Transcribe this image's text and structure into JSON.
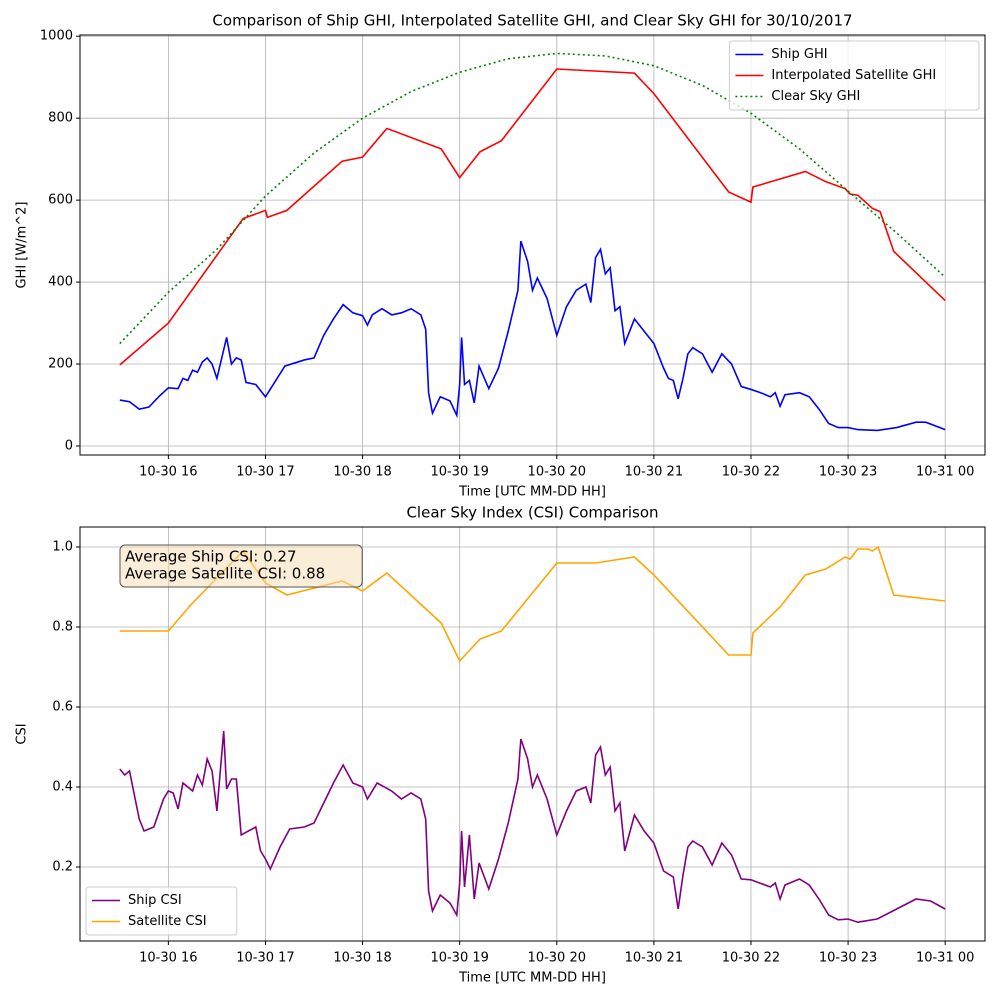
{
  "chart_data": [
    {
      "type": "line",
      "title": "Comparison of Ship GHI, Interpolated Satellite GHI, and Clear Sky GHI for 30/10/2017",
      "x_label": "Time [UTC MM-DD HH]",
      "y_label": "GHI [W/m^2]",
      "xlim": [
        15.09,
        24.41
      ],
      "ylim": [
        -22,
        1003
      ],
      "xticks": [
        {
          "value": 16,
          "label": "10-30 16"
        },
        {
          "value": 17,
          "label": "10-30 17"
        },
        {
          "value": 18,
          "label": "10-30 18"
        },
        {
          "value": 19,
          "label": "10-30 19"
        },
        {
          "value": 20,
          "label": "10-30 20"
        },
        {
          "value": 21,
          "label": "10-30 21"
        },
        {
          "value": 22,
          "label": "10-30 22"
        },
        {
          "value": 23,
          "label": "10-30 23"
        },
        {
          "value": 24,
          "label": "10-31 00"
        }
      ],
      "yticks": [
        0,
        200,
        400,
        600,
        800,
        1000
      ],
      "grid": true,
      "legend": "upper right",
      "series": [
        {
          "name": "Ship GHI",
          "color": "#0000ff",
          "linestyle": "solid",
          "x": [
            15.5,
            15.6,
            15.7,
            15.8,
            15.9,
            16.0,
            16.1,
            16.15,
            16.2,
            16.25,
            16.3,
            16.35,
            16.4,
            16.45,
            16.5,
            16.6,
            16.65,
            16.7,
            16.75,
            16.8,
            16.9,
            17.0,
            17.2,
            17.4,
            17.5,
            17.6,
            17.7,
            17.8,
            17.9,
            18.0,
            18.05,
            18.1,
            18.2,
            18.3,
            18.4,
            18.5,
            18.6,
            18.65,
            18.68,
            18.72,
            18.8,
            18.9,
            18.97,
            19.0,
            19.02,
            19.05,
            19.1,
            19.15,
            19.2,
            19.3,
            19.4,
            19.5,
            19.6,
            19.63,
            19.7,
            19.75,
            19.8,
            19.9,
            20.0,
            20.1,
            20.2,
            20.3,
            20.35,
            20.4,
            20.45,
            20.5,
            20.55,
            20.6,
            20.65,
            20.7,
            20.8,
            20.9,
            21.0,
            21.1,
            21.15,
            21.2,
            21.25,
            21.3,
            21.35,
            21.4,
            21.5,
            21.6,
            21.7,
            21.8,
            21.9,
            22.0,
            22.1,
            22.2,
            22.25,
            22.3,
            22.35,
            22.5,
            22.6,
            22.7,
            22.8,
            22.9,
            23.0,
            23.1,
            23.3,
            23.5,
            23.7,
            23.8,
            24.0
          ],
          "values": [
            112,
            108,
            90,
            95,
            120,
            142,
            140,
            165,
            160,
            185,
            180,
            205,
            215,
            200,
            165,
            265,
            200,
            215,
            210,
            155,
            150,
            120,
            195,
            210,
            215,
            270,
            310,
            345,
            325,
            318,
            295,
            320,
            335,
            320,
            325,
            335,
            320,
            285,
            130,
            80,
            120,
            110,
            75,
            150,
            265,
            150,
            160,
            105,
            195,
            140,
            190,
            280,
            380,
            500,
            450,
            380,
            410,
            360,
            270,
            340,
            380,
            395,
            350,
            460,
            480,
            420,
            435,
            330,
            340,
            250,
            310,
            280,
            250,
            190,
            165,
            160,
            115,
            165,
            225,
            240,
            225,
            180,
            225,
            200,
            145,
            138,
            130,
            120,
            130,
            97,
            125,
            130,
            120,
            90,
            55,
            45,
            45,
            40,
            38,
            45,
            58,
            58,
            40
          ]
        },
        {
          "name": "Interpolated Satellite GHI",
          "color": "#ff0000",
          "linestyle": "solid",
          "x": [
            15.5,
            16.0,
            16.77,
            17.0,
            17.02,
            17.22,
            17.79,
            18.0,
            18.25,
            18.81,
            19.0,
            19.21,
            19.43,
            20.0,
            20.8,
            21.0,
            21.77,
            22.0,
            22.02,
            22.56,
            22.77,
            22.97,
            23.02,
            23.1,
            23.25,
            23.33,
            23.47,
            24.0
          ],
          "values": [
            198,
            300,
            555,
            575,
            558,
            575,
            695,
            705,
            775,
            725,
            655,
            718,
            745,
            920,
            910,
            860,
            620,
            595,
            632,
            670,
            645,
            628,
            615,
            612,
            580,
            572,
            475,
            355
          ]
        },
        {
          "name": "Clear Sky GHI",
          "color": "#008000",
          "linestyle": "dotted",
          "x": [
            15.5,
            16.0,
            16.5,
            17.0,
            17.5,
            18.0,
            18.5,
            19.0,
            19.5,
            20.0,
            20.5,
            21.0,
            21.5,
            22.0,
            22.5,
            23.0,
            23.5,
            24.0
          ],
          "values": [
            250,
            375,
            480,
            610,
            715,
            800,
            865,
            912,
            945,
            958,
            952,
            928,
            880,
            812,
            725,
            622,
            520,
            412
          ]
        }
      ]
    },
    {
      "type": "line",
      "title": "Clear Sky Index (CSI) Comparison",
      "x_label": "Time [UTC MM-DD HH]",
      "y_label": "CSI",
      "xlim": [
        15.09,
        24.41
      ],
      "ylim": [
        0.015,
        1.05
      ],
      "xticks": [
        {
          "value": 16,
          "label": "10-30 16"
        },
        {
          "value": 17,
          "label": "10-30 17"
        },
        {
          "value": 18,
          "label": "10-30 18"
        },
        {
          "value": 19,
          "label": "10-30 19"
        },
        {
          "value": 20,
          "label": "10-30 20"
        },
        {
          "value": 21,
          "label": "10-30 21"
        },
        {
          "value": 22,
          "label": "10-30 22"
        },
        {
          "value": 23,
          "label": "10-30 23"
        },
        {
          "value": 24,
          "label": "10-31 00"
        }
      ],
      "yticks": [
        0.2,
        0.4,
        0.6,
        0.8,
        {
          "value": 1,
          "label": "1.0"
        }
      ],
      "grid": true,
      "legend": "lower left",
      "annotations": [
        "Average Ship CSI: 0.27",
        "Average Satellite CSI: 0.88"
      ],
      "series": [
        {
          "name": "Ship CSI",
          "color": "#800080",
          "linestyle": "solid",
          "x": [
            15.5,
            15.55,
            15.6,
            15.7,
            15.75,
            15.85,
            15.95,
            16.0,
            16.05,
            16.1,
            16.15,
            16.25,
            16.3,
            16.35,
            16.4,
            16.45,
            16.5,
            16.57,
            16.6,
            16.65,
            16.7,
            16.75,
            16.9,
            16.95,
            17.0,
            17.05,
            17.15,
            17.25,
            17.4,
            17.5,
            17.6,
            17.7,
            17.8,
            17.9,
            18.0,
            18.05,
            18.15,
            18.3,
            18.4,
            18.5,
            18.6,
            18.65,
            18.68,
            18.72,
            18.8,
            18.9,
            18.97,
            19.0,
            19.02,
            19.05,
            19.1,
            19.15,
            19.2,
            19.3,
            19.4,
            19.5,
            19.6,
            19.63,
            19.7,
            19.75,
            19.8,
            19.9,
            20.0,
            20.1,
            20.2,
            20.3,
            20.35,
            20.4,
            20.45,
            20.5,
            20.55,
            20.6,
            20.65,
            20.7,
            20.8,
            20.9,
            21.0,
            21.1,
            21.2,
            21.25,
            21.3,
            21.35,
            21.4,
            21.5,
            21.6,
            21.7,
            21.8,
            21.9,
            22.0,
            22.2,
            22.25,
            22.3,
            22.35,
            22.5,
            22.6,
            22.7,
            22.8,
            22.9,
            23.0,
            23.1,
            23.3,
            23.5,
            23.7,
            23.85,
            24.0
          ],
          "values": [
            0.445,
            0.43,
            0.44,
            0.32,
            0.29,
            0.3,
            0.37,
            0.39,
            0.385,
            0.345,
            0.41,
            0.39,
            0.43,
            0.405,
            0.47,
            0.44,
            0.34,
            0.54,
            0.395,
            0.42,
            0.42,
            0.28,
            0.3,
            0.24,
            0.22,
            0.195,
            0.25,
            0.295,
            0.3,
            0.31,
            0.36,
            0.41,
            0.455,
            0.41,
            0.4,
            0.37,
            0.41,
            0.39,
            0.37,
            0.385,
            0.37,
            0.32,
            0.14,
            0.09,
            0.13,
            0.11,
            0.08,
            0.16,
            0.29,
            0.15,
            0.28,
            0.12,
            0.21,
            0.145,
            0.22,
            0.31,
            0.42,
            0.52,
            0.47,
            0.4,
            0.43,
            0.37,
            0.28,
            0.34,
            0.39,
            0.4,
            0.36,
            0.48,
            0.5,
            0.43,
            0.45,
            0.34,
            0.36,
            0.24,
            0.33,
            0.29,
            0.26,
            0.19,
            0.175,
            0.095,
            0.18,
            0.25,
            0.265,
            0.25,
            0.205,
            0.26,
            0.23,
            0.17,
            0.168,
            0.15,
            0.16,
            0.12,
            0.155,
            0.17,
            0.155,
            0.12,
            0.08,
            0.068,
            0.07,
            0.062,
            0.07,
            0.095,
            0.12,
            0.115,
            0.095
          ]
        },
        {
          "name": "Satellite CSI",
          "color": "#ffa500",
          "linestyle": "solid",
          "x": [
            15.5,
            16.0,
            16.23,
            16.77,
            17.0,
            17.22,
            17.79,
            18.0,
            18.25,
            18.81,
            19.0,
            19.21,
            19.43,
            20.0,
            20.4,
            20.8,
            21.0,
            21.77,
            22.0,
            22.02,
            22.3,
            22.56,
            22.77,
            22.97,
            23.02,
            23.1,
            23.21,
            23.25,
            23.31,
            23.47,
            24.0
          ],
          "values": [
            0.79,
            0.79,
            0.855,
            0.99,
            0.91,
            0.88,
            0.915,
            0.89,
            0.935,
            0.81,
            0.715,
            0.77,
            0.79,
            0.96,
            0.96,
            0.975,
            0.93,
            0.73,
            0.73,
            0.785,
            0.85,
            0.93,
            0.945,
            0.975,
            0.97,
            0.995,
            0.995,
            0.99,
            1.0,
            0.88,
            0.865
          ]
        }
      ]
    }
  ]
}
